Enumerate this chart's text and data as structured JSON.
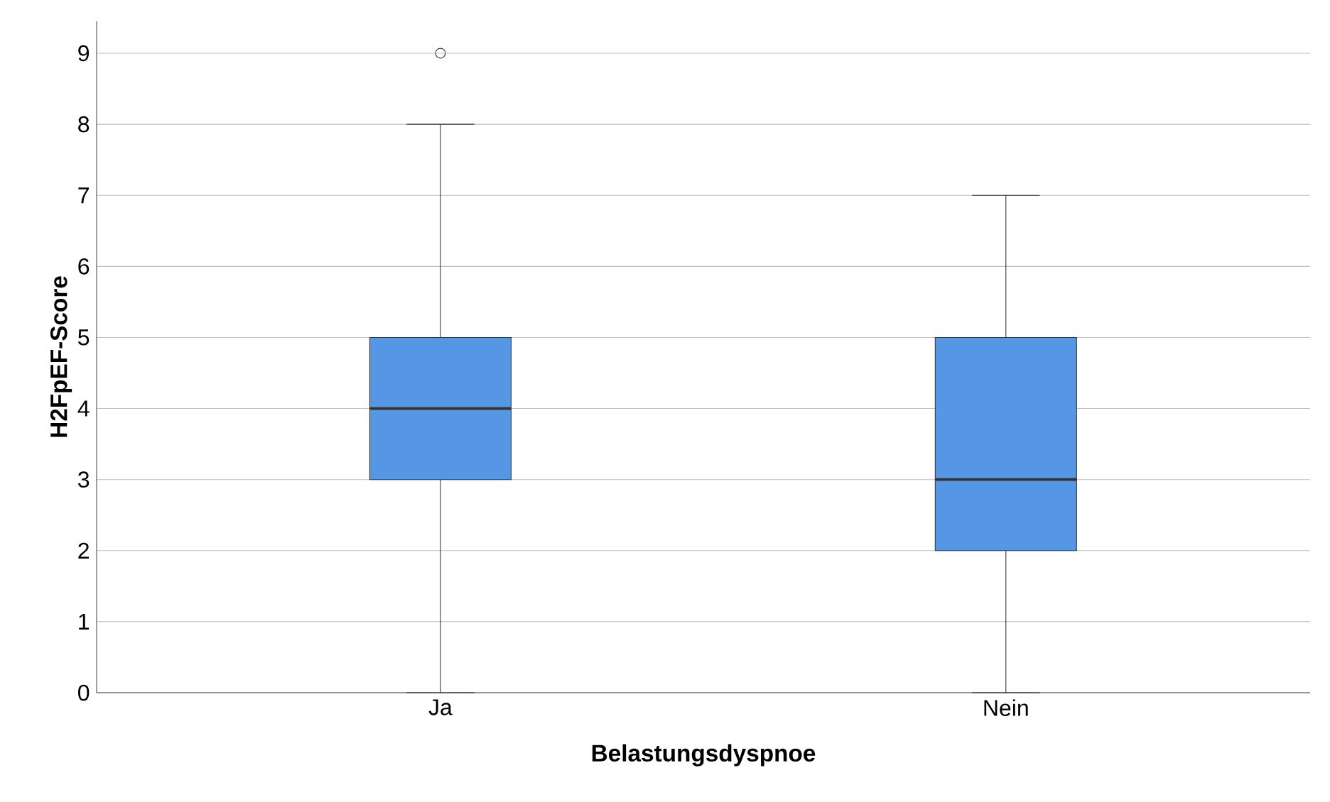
{
  "chart_data": {
    "type": "box",
    "categories": [
      "Ja",
      "Nein"
    ],
    "xlabel": "Belastungsdyspnoe",
    "ylabel": "H2FpEF-Score",
    "ylim": [
      0,
      9.45
    ],
    "yticks": [
      0,
      1,
      2,
      3,
      4,
      5,
      6,
      7,
      8,
      9
    ],
    "grid": "y",
    "series": [
      {
        "color": "#5596e5",
        "boxes": [
          {
            "low": 0,
            "q1": 3,
            "median": 4,
            "q3": 5,
            "high": 8,
            "outliers": [
              9
            ]
          },
          {
            "low": 0,
            "q1": 2,
            "median": 3,
            "q3": 5,
            "high": 7
          }
        ]
      }
    ]
  }
}
